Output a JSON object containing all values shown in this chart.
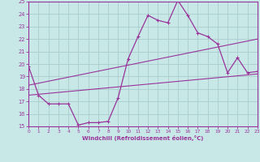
{
  "xlabel": "Windchill (Refroidissement éolien,°C)",
  "x_hours": [
    0,
    1,
    2,
    3,
    4,
    5,
    6,
    7,
    8,
    9,
    10,
    11,
    12,
    13,
    14,
    15,
    16,
    17,
    18,
    19,
    20,
    21,
    22,
    23
  ],
  "main_line": [
    19.8,
    17.5,
    16.8,
    16.8,
    16.8,
    15.1,
    15.3,
    15.3,
    15.4,
    17.3,
    20.4,
    22.2,
    23.9,
    23.5,
    23.3,
    25.1,
    23.9,
    22.5,
    22.2,
    21.6,
    19.3,
    20.5,
    19.3,
    19.4
  ],
  "line_color": "#993399",
  "bg_color": "#c8e8e8",
  "grid_color": "#aacccc",
  "axis_color": "#993399",
  "tick_label_color": "#993399",
  "ylim": [
    15,
    25
  ],
  "xlim": [
    0,
    23
  ],
  "yticks": [
    15,
    16,
    17,
    18,
    19,
    20,
    21,
    22,
    23,
    24,
    25
  ],
  "xticks": [
    0,
    1,
    2,
    3,
    4,
    5,
    6,
    7,
    8,
    9,
    10,
    11,
    12,
    13,
    14,
    15,
    16,
    17,
    18,
    19,
    20,
    21,
    22,
    23
  ],
  "trend1_x": [
    0,
    23
  ],
  "trend1_y": [
    17.5,
    19.2
  ],
  "trend2_x": [
    0,
    23
  ],
  "trend2_y": [
    18.3,
    22.0
  ]
}
